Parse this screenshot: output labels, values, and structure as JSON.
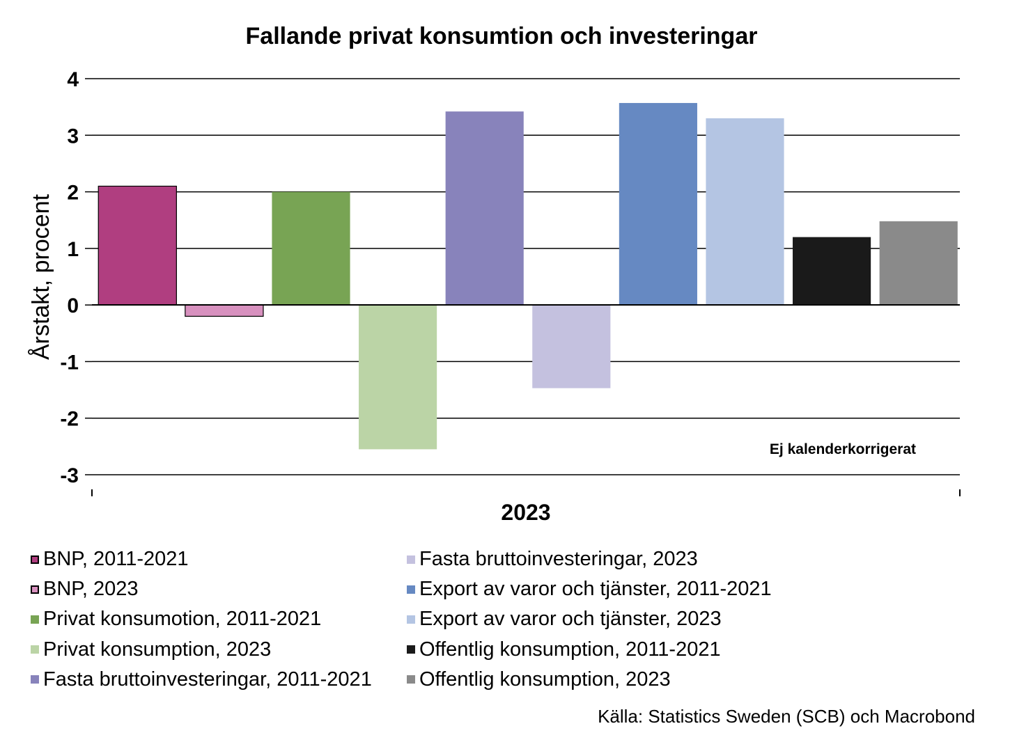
{
  "chart_data": {
    "type": "bar",
    "title": "Fallande privat konsumtion och investeringar",
    "ylabel": "Årstakt, procent",
    "xlabel": "",
    "categories": [
      "2023"
    ],
    "ylim": [
      -3,
      4
    ],
    "yticks": [
      4,
      3,
      2,
      1,
      0,
      -1,
      -2,
      -3
    ],
    "grid": true,
    "legend_position": "bottom",
    "annotation": "Ej kalenderkorrigerat",
    "series": [
      {
        "name": "BNP, 2011-2021",
        "values": [
          2.1
        ],
        "color": "#b03e80",
        "outline": true
      },
      {
        "name": "BNP, 2023",
        "values": [
          -0.2
        ],
        "color": "#d891bf",
        "outline": true
      },
      {
        "name": "Privat konsumotion, 2011-2021",
        "values": [
          2.0
        ],
        "color": "#78a454"
      },
      {
        "name": "Privat konsumption, 2023",
        "values": [
          -2.55
        ],
        "color": "#bbd4a6"
      },
      {
        "name": "Fasta bruttoinvesteringar, 2011-2021",
        "values": [
          3.42
        ],
        "color": "#8883bb"
      },
      {
        "name": "Fasta bruttoinvesteringar, 2023",
        "values": [
          -1.47
        ],
        "color": "#c4c1df"
      },
      {
        "name": "Export av varor och tjänster, 2011-2021",
        "values": [
          3.57
        ],
        "color": "#6689c2"
      },
      {
        "name": "Export av varor och tjänster, 2023",
        "values": [
          3.3
        ],
        "color": "#b4c5e3"
      },
      {
        "name": "Offentlig konsumption, 2011-2021",
        "values": [
          1.2
        ],
        "color": "#1a1a1a"
      },
      {
        "name": "Offentlig konsumption, 2023",
        "values": [
          1.48
        ],
        "color": "#8a8a8a"
      }
    ]
  },
  "source": "Källa: Statistics Sweden (SCB) och Macrobond"
}
